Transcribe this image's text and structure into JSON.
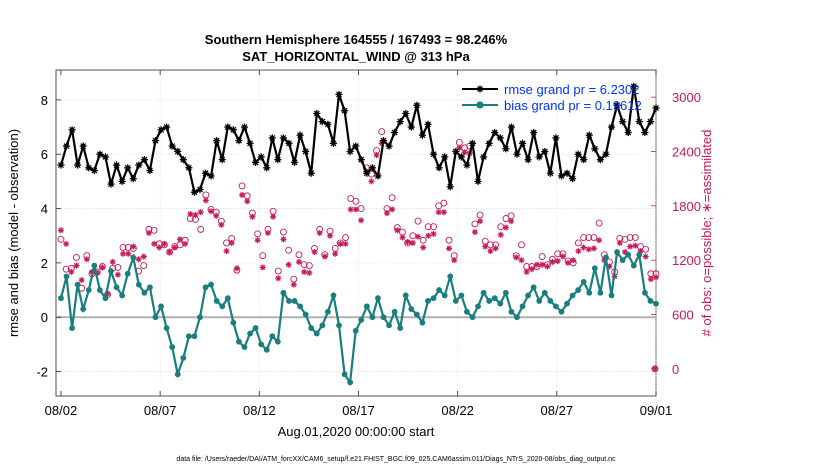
{
  "chart_data": {
    "type": "line",
    "title": "Southern Hemisphere 164555 / 167493 = 98.246%",
    "subtitle": "SAT_HORIZONTAL_WIND @ 313 hPa",
    "xlabel": "Aug.01,2020 00:00:00 start",
    "ylabel_left": "rmse and bias (model - observation)",
    "ylabel_right": "# of obs: o=possible; ∗=assimilated",
    "footer": "data file: /Users/raeder/DAI/ATM_forcXX/CAM6_setup/f.e21.FHIST_BGC.f09_025.CAM6assim.011/Diags_NTrS_2020-08/obs_diag_output.nc",
    "x_ticks": [
      "08/02",
      "08/07",
      "08/12",
      "08/17",
      "08/22",
      "08/27",
      "09/01"
    ],
    "x_tick_days": [
      1,
      6,
      11,
      16,
      21,
      26,
      31
    ],
    "xlim_days": [
      0.75,
      31.0
    ],
    "ylim_left": [
      -2.9,
      9.1
    ],
    "y_ticks_left": [
      -2,
      0,
      2,
      4,
      6,
      8
    ],
    "ylim_right": [
      -300,
      3300
    ],
    "y_ticks_right": [
      0,
      600,
      1200,
      1800,
      2400,
      3000
    ],
    "legend": {
      "placement": "top-right",
      "entries": [
        "rmse grand pr = 6.2302",
        "bias grand pr = 0.19612"
      ]
    },
    "colors": {
      "rmse": "#000000",
      "bias": "#1a7d7e",
      "obs": "#c8195c",
      "zero_line": "#b0b0b0",
      "legend_text": "#0033ff"
    },
    "series": [
      {
        "key": "rmse",
        "name": "rmse grand pr = 6.2302",
        "axis": "left",
        "values": [
          5.6,
          6.3,
          6.9,
          5.6,
          6.3,
          5.5,
          5.4,
          6.0,
          5.9,
          4.9,
          5.6,
          5.0,
          5.5,
          5.1,
          5.6,
          5.8,
          5.4,
          6.5,
          6.9,
          7.0,
          6.3,
          6.1,
          5.8,
          5.5,
          4.6,
          4.7,
          5.3,
          5.2,
          6.5,
          5.8,
          7.0,
          6.9,
          6.5,
          7.0,
          6.4,
          5.7,
          5.9,
          5.5,
          6.6,
          5.8,
          6.6,
          6.4,
          5.7,
          6.7,
          6.1,
          5.3,
          7.5,
          7.2,
          7.1,
          6.4,
          8.2,
          7.6,
          6.1,
          6.3,
          5.8,
          5.3,
          5.5,
          5.2,
          6.5,
          6.3,
          6.8,
          7.2,
          7.5,
          7.0,
          7.8,
          6.7,
          7.1,
          6.0,
          5.5,
          5.9,
          4.8,
          6.1,
          5.9,
          5.6,
          6.4,
          5.0,
          5.9,
          6.4,
          6.8,
          6.6,
          6.2,
          7.0,
          6.0,
          6.4,
          5.8,
          6.8,
          5.9,
          6.1,
          5.3,
          6.6,
          5.2,
          5.3,
          5.1,
          6.0,
          5.8,
          6.7,
          6.2,
          5.8,
          6.0,
          7.0,
          7.8,
          7.2,
          6.8,
          8.5,
          7.2,
          6.8,
          7.2,
          7.7
        ]
      },
      {
        "key": "bias",
        "name": "bias grand pr = 0.19612",
        "axis": "left",
        "values": [
          0.7,
          1.5,
          -0.4,
          1.2,
          0.3,
          1.0,
          1.9,
          1.0,
          0.7,
          1.7,
          1.1,
          0.8,
          1.6,
          2.2,
          1.2,
          0.9,
          1.1,
          0.0,
          0.4,
          -0.4,
          -1.1,
          -2.1,
          -1.5,
          -0.7,
          -0.7,
          0.0,
          1.1,
          1.2,
          0.6,
          0.4,
          0.7,
          -0.2,
          -0.9,
          -1.1,
          -0.6,
          -0.4,
          -1.0,
          -1.2,
          -0.7,
          -0.9,
          0.9,
          0.6,
          0.6,
          0.4,
          0.1,
          -0.4,
          -0.6,
          -0.3,
          0.2,
          0.8,
          -0.3,
          -2.1,
          -2.4,
          -0.5,
          -0.1,
          0.4,
          0.0,
          0.7,
          0.0,
          -0.3,
          0.2,
          -0.4,
          0.8,
          0.3,
          0.1,
          -0.2,
          0.6,
          0.7,
          1.0,
          0.8,
          1.5,
          0.6,
          0.8,
          0.2,
          0.0,
          0.4,
          0.9,
          0.6,
          0.7,
          0.5,
          0.9,
          0.2,
          0.0,
          0.4,
          0.8,
          1.1,
          0.6,
          0.9,
          0.6,
          0.4,
          0.2,
          0.5,
          0.8,
          1.0,
          1.3,
          0.9,
          1.8,
          0.9,
          2.2,
          0.8,
          2.4,
          2.1,
          2.3,
          1.9,
          2.3,
          0.9,
          0.6,
          0.5
        ]
      },
      {
        "key": "obs_possible",
        "name": "",
        "axis": "right",
        "values": [
          1430,
          1100,
          1110,
          1230,
          890,
          1250,
          1050,
          1070,
          1130,
          820,
          1110,
          1120,
          1340,
          1340,
          1330,
          1080,
          1140,
          1540,
          1530,
          1380,
          1370,
          1290,
          1350,
          1370,
          1420,
          1660,
          1650,
          1540,
          1920,
          1760,
          1730,
          1630,
          1390,
          1440,
          1090,
          2020,
          1910,
          1720,
          1490,
          1250,
          1540,
          1740,
          1080,
          1510,
          1310,
          990,
          1260,
          1150,
          1140,
          1330,
          1540,
          1260,
          1520,
          1330,
          1390,
          1450,
          1880,
          1850,
          1770,
          2220,
          2150,
          2410,
          2620,
          1770,
          1890,
          1560,
          1510,
          1390,
          1470,
          1630,
          1420,
          1570,
          1570,
          1800,
          1830,
          1420,
          1250,
          2500,
          2440,
          2460,
          1600,
          1700,
          1410,
          1370,
          1370,
          1570,
          1660,
          1690,
          1250,
          1370,
          1130,
          1130,
          1130,
          1240,
          1150,
          1210,
          1270,
          1270,
          1190,
          1170,
          1390,
          1450,
          1450,
          1450,
          1610,
          1260,
          1180,
          1070,
          1440,
          1430,
          1450,
          1450,
          1350,
          1320,
          1050,
          1050
        ]
      },
      {
        "key": "obs_assimilated",
        "name": "",
        "axis": "right",
        "values": [
          1530,
          1380,
          1070,
          1140,
          980,
          1210,
          1070,
          1060,
          1120,
          830,
          1180,
          1040,
          1270,
          1270,
          1350,
          1210,
          1240,
          1500,
          1380,
          1340,
          1380,
          1290,
          1340,
          1430,
          1380,
          1710,
          1700,
          1730,
          1860,
          1740,
          1690,
          1590,
          1300,
          1390,
          1110,
          1920,
          1850,
          1680,
          1420,
          1120,
          1500,
          1680,
          1000,
          1430,
          1150,
          930,
          1180,
          1070,
          1060,
          1290,
          1500,
          1240,
          1470,
          1270,
          1380,
          1380,
          1760,
          1760,
          1640,
          2180,
          2070,
          2360,
          2490,
          1720,
          1760,
          1530,
          1450,
          1400,
          1390,
          1460,
          1340,
          1470,
          1490,
          1730,
          1730,
          1330,
          1200,
          2440,
          2390,
          2380,
          1510,
          1630,
          1350,
          1300,
          1330,
          1480,
          1560,
          1630,
          1230,
          1200,
          1070,
          1100,
          1150,
          1150,
          1130,
          1180,
          1190,
          1240,
          1170,
          1200,
          1300,
          1340,
          1320,
          1330,
          1420,
          1200,
          1130,
          1020,
          1390,
          1290,
          1350,
          1360,
          1300,
          1240,
          990,
          1010
        ]
      }
    ]
  }
}
